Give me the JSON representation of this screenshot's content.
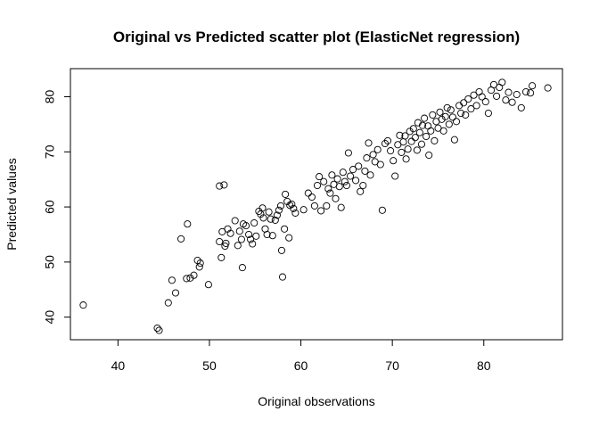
{
  "chart_data": {
    "type": "scatter",
    "title": "Original vs Predicted scatter plot (ElasticNet regression)",
    "xlabel": "Original observations",
    "ylabel": "Predicted values",
    "xlim": [
      34.8,
      88.6
    ],
    "ylim": [
      35.9,
      85.1
    ],
    "xticks": [
      40,
      50,
      60,
      70,
      80
    ],
    "yticks": [
      40,
      50,
      60,
      70,
      80
    ],
    "grid": false,
    "point_shape": "open-circle",
    "points": [
      [
        36.2,
        42.2
      ],
      [
        44.3,
        38.0
      ],
      [
        44.5,
        37.6
      ],
      [
        45.5,
        42.6
      ],
      [
        45.9,
        46.7
      ],
      [
        46.3,
        44.4
      ],
      [
        46.9,
        54.2
      ],
      [
        47.6,
        56.9
      ],
      [
        47.5,
        47.0
      ],
      [
        47.9,
        47.1
      ],
      [
        48.3,
        47.6
      ],
      [
        48.7,
        50.3
      ],
      [
        48.9,
        49.1
      ],
      [
        49.0,
        49.8
      ],
      [
        49.9,
        45.9
      ],
      [
        51.1,
        63.8
      ],
      [
        51.6,
        64.0
      ],
      [
        51.1,
        53.7
      ],
      [
        51.3,
        50.8
      ],
      [
        51.4,
        55.5
      ],
      [
        51.7,
        52.9
      ],
      [
        51.8,
        53.4
      ],
      [
        52.0,
        56.0
      ],
      [
        52.3,
        55.2
      ],
      [
        52.8,
        57.5
      ],
      [
        53.1,
        53.0
      ],
      [
        53.3,
        55.6
      ],
      [
        53.5,
        54.1
      ],
      [
        53.6,
        49.0
      ],
      [
        53.7,
        56.9
      ],
      [
        54.0,
        56.6
      ],
      [
        54.3,
        55.0
      ],
      [
        54.5,
        54.1
      ],
      [
        54.7,
        53.3
      ],
      [
        54.9,
        57.1
      ],
      [
        55.1,
        54.7
      ],
      [
        55.4,
        59.2
      ],
      [
        55.6,
        58.7
      ],
      [
        55.8,
        59.8
      ],
      [
        55.9,
        58.0
      ],
      [
        56.1,
        56.0
      ],
      [
        56.3,
        55.0
      ],
      [
        56.5,
        59.1
      ],
      [
        56.7,
        57.8
      ],
      [
        56.9,
        54.8
      ],
      [
        57.2,
        57.6
      ],
      [
        57.4,
        58.5
      ],
      [
        57.6,
        59.4
      ],
      [
        57.8,
        60.2
      ],
      [
        57.9,
        52.1
      ],
      [
        58.0,
        47.3
      ],
      [
        58.2,
        56.0
      ],
      [
        58.3,
        62.3
      ],
      [
        58.5,
        61.0
      ],
      [
        58.7,
        54.4
      ],
      [
        58.8,
        60.3
      ],
      [
        59.0,
        60.5
      ],
      [
        59.2,
        59.7
      ],
      [
        59.4,
        58.9
      ],
      [
        60.3,
        59.5
      ],
      [
        60.8,
        62.5
      ],
      [
        61.2,
        61.8
      ],
      [
        61.5,
        60.2
      ],
      [
        61.8,
        63.9
      ],
      [
        62.0,
        65.5
      ],
      [
        62.2,
        59.3
      ],
      [
        62.5,
        64.6
      ],
      [
        62.8,
        60.2
      ],
      [
        63.0,
        63.3
      ],
      [
        63.2,
        62.5
      ],
      [
        63.4,
        65.8
      ],
      [
        63.6,
        64.1
      ],
      [
        63.8,
        61.5
      ],
      [
        64.0,
        65.1
      ],
      [
        64.2,
        63.7
      ],
      [
        64.4,
        59.9
      ],
      [
        64.6,
        66.3
      ],
      [
        64.8,
        64.6
      ],
      [
        65.0,
        63.9
      ],
      [
        65.2,
        69.8
      ],
      [
        65.4,
        65.6
      ],
      [
        65.7,
        66.8
      ],
      [
        66.0,
        64.8
      ],
      [
        66.3,
        67.4
      ],
      [
        66.5,
        62.8
      ],
      [
        66.8,
        63.9
      ],
      [
        67.0,
        66.5
      ],
      [
        67.2,
        68.9
      ],
      [
        67.4,
        71.6
      ],
      [
        67.6,
        65.8
      ],
      [
        67.9,
        69.5
      ],
      [
        68.1,
        68.2
      ],
      [
        68.4,
        70.4
      ],
      [
        68.7,
        67.7
      ],
      [
        68.9,
        59.4
      ],
      [
        69.2,
        71.5
      ],
      [
        69.5,
        72.0
      ],
      [
        69.8,
        70.2
      ],
      [
        70.1,
        68.4
      ],
      [
        70.3,
        65.6
      ],
      [
        70.6,
        71.3
      ],
      [
        70.8,
        73.0
      ],
      [
        71.0,
        69.9
      ],
      [
        71.2,
        71.8
      ],
      [
        71.4,
        72.9
      ],
      [
        71.5,
        68.7
      ],
      [
        71.7,
        70.5
      ],
      [
        71.9,
        73.7
      ],
      [
        72.1,
        71.9
      ],
      [
        72.3,
        74.2
      ],
      [
        72.5,
        72.6
      ],
      [
        72.7,
        70.3
      ],
      [
        72.8,
        75.3
      ],
      [
        73.0,
        73.5
      ],
      [
        73.2,
        71.4
      ],
      [
        73.3,
        74.8
      ],
      [
        73.5,
        76.1
      ],
      [
        73.7,
        72.8
      ],
      [
        73.9,
        74.7
      ],
      [
        74.0,
        69.4
      ],
      [
        74.2,
        73.8
      ],
      [
        74.4,
        76.7
      ],
      [
        74.6,
        72.0
      ],
      [
        74.8,
        75.5
      ],
      [
        75.0,
        74.3
      ],
      [
        75.2,
        77.2
      ],
      [
        75.4,
        75.9
      ],
      [
        75.6,
        73.8
      ],
      [
        75.8,
        76.4
      ],
      [
        76.0,
        78.0
      ],
      [
        76.2,
        75.0
      ],
      [
        76.4,
        77.6
      ],
      [
        76.6,
        76.3
      ],
      [
        76.8,
        72.2
      ],
      [
        77.0,
        75.5
      ],
      [
        77.3,
        78.4
      ],
      [
        77.5,
        77.0
      ],
      [
        77.8,
        78.9
      ],
      [
        78.0,
        76.7
      ],
      [
        78.3,
        79.6
      ],
      [
        78.6,
        77.8
      ],
      [
        78.9,
        80.3
      ],
      [
        79.2,
        78.4
      ],
      [
        79.5,
        80.9
      ],
      [
        79.8,
        80.0
      ],
      [
        80.2,
        79.1
      ],
      [
        80.5,
        77.0
      ],
      [
        80.8,
        81.2
      ],
      [
        81.1,
        82.2
      ],
      [
        81.4,
        80.1
      ],
      [
        81.7,
        81.7
      ],
      [
        82.0,
        82.6
      ],
      [
        82.4,
        79.4
      ],
      [
        82.7,
        80.8
      ],
      [
        83.1,
        79.0
      ],
      [
        83.6,
        80.4
      ],
      [
        84.1,
        78.0
      ],
      [
        84.6,
        80.9
      ],
      [
        85.1,
        80.7
      ],
      [
        85.3,
        82.0
      ],
      [
        87.0,
        81.6
      ]
    ]
  }
}
